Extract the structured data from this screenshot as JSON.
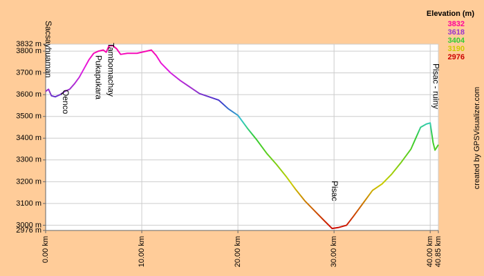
{
  "chart_data": {
    "type": "line",
    "credit": "created by GPSVisualizer.com",
    "legend": {
      "title": "Elevation (m)",
      "position": "top-right",
      "entries": [
        {
          "value": 3832,
          "color": "#ff0099"
        },
        {
          "value": 3618,
          "color": "#9933cc"
        },
        {
          "value": 3404,
          "color": "#33cc33"
        },
        {
          "value": 3190,
          "color": "#cccc00"
        },
        {
          "value": 2976,
          "color": "#cc0000"
        }
      ]
    },
    "xlim": [
      0,
      40.85
    ],
    "xticks": [
      {
        "value": 0,
        "label": "0.00 km"
      },
      {
        "value": 10,
        "label": "10.00 km"
      },
      {
        "value": 20,
        "label": "20.00 km"
      },
      {
        "value": 30,
        "label": "30.00 km"
      },
      {
        "value": 40,
        "label": "40.00 km"
      },
      {
        "value": 40.85,
        "label": "40.85 km"
      }
    ],
    "ylim": [
      2976,
      3832
    ],
    "yticks": [
      {
        "value": 2976,
        "label": "2976 m"
      },
      {
        "value": 3000,
        "label": "3000 m"
      },
      {
        "value": 3100,
        "label": "3100 m"
      },
      {
        "value": 3200,
        "label": "3200 m"
      },
      {
        "value": 3300,
        "label": "3300 m"
      },
      {
        "value": 3400,
        "label": "3400 m"
      },
      {
        "value": 3500,
        "label": "3500 m"
      },
      {
        "value": 3600,
        "label": "3600 m"
      },
      {
        "value": 3700,
        "label": "3700 m"
      },
      {
        "value": 3800,
        "label": "3800 m"
      },
      {
        "value": 3832,
        "label": "3832 m"
      }
    ],
    "grid": true,
    "annotations": [
      {
        "text": "Sacsayhuaman",
        "x": 0.1
      },
      {
        "text": "Qenco",
        "x": 1.9
      },
      {
        "text": "Pukapukara",
        "x": 5.3
      },
      {
        "text": "Tambomachay",
        "x": 6.6
      },
      {
        "text": "Pisac",
        "x": 29.85
      },
      {
        "text": "Pisac - ruiny",
        "x": 40.4
      }
    ],
    "series": [
      {
        "x": [
          0,
          0.3,
          0.6,
          1.0,
          1.5,
          2.0,
          2.5,
          3.0,
          3.5,
          4.0,
          4.5,
          5.0,
          5.5,
          6.0,
          6.3,
          6.6,
          7.0,
          7.4,
          7.8,
          8.5,
          9.5,
          10.5,
          11.0,
          11.5,
          12.0,
          13.0,
          14.0,
          15.0,
          16.0,
          17.0,
          18.0,
          19.0,
          20.0,
          21.0,
          22.0,
          23.0,
          24.0,
          25.0,
          26.0,
          27.0,
          28.0,
          29.0,
          29.8,
          30.5,
          31.3,
          32.0,
          33.0,
          34.0,
          35.0,
          36.0,
          37.0,
          38.0,
          39.0,
          39.6,
          40.0,
          40.3,
          40.5,
          40.85
        ],
        "values": [
          3615,
          3625,
          3595,
          3590,
          3600,
          3615,
          3625,
          3650,
          3680,
          3720,
          3760,
          3790,
          3800,
          3805,
          3795,
          3825,
          3825,
          3810,
          3785,
          3790,
          3790,
          3800,
          3805,
          3780,
          3745,
          3700,
          3665,
          3635,
          3605,
          3590,
          3575,
          3535,
          3505,
          3445,
          3390,
          3330,
          3280,
          3225,
          3165,
          3110,
          3065,
          3020,
          2985,
          2990,
          3000,
          3040,
          3100,
          3160,
          3190,
          3235,
          3290,
          3350,
          3450,
          3465,
          3470,
          3380,
          3345,
          3370
        ]
      }
    ]
  }
}
